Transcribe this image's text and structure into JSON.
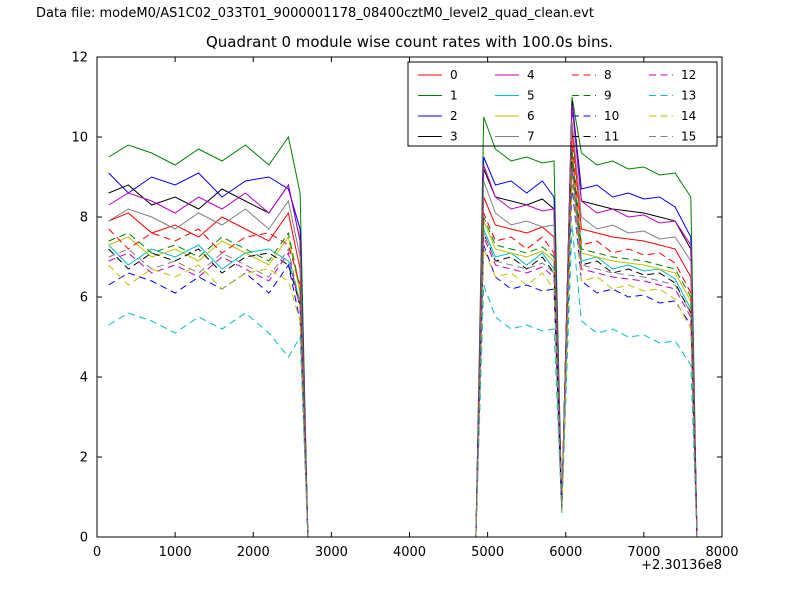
{
  "header": {
    "data_file_label": "Data file: modeM0/AS1C02_033T01_9000001178_08400cztM0_level2_quad_clean.evt"
  },
  "chart_data": {
    "type": "line",
    "title": "Quadrant 0 module wise count rates with 100.0s bins.",
    "xlabel": "",
    "ylabel": "",
    "xlim": [
      0,
      8000
    ],
    "ylim": [
      0,
      12
    ],
    "xticks": [
      0,
      1000,
      2000,
      3000,
      4000,
      5000,
      6000,
      7000,
      8000
    ],
    "yticks": [
      0,
      2,
      4,
      6,
      8,
      10,
      12
    ],
    "x_offset_label": "+2.30136e8",
    "grid": false,
    "legend": {
      "ncol": 4,
      "loc": "upper right"
    },
    "x": [
      150,
      400,
      700,
      1000,
      1300,
      1600,
      1900,
      2200,
      2450,
      2600,
      2700,
      3200,
      4000,
      4700,
      4850,
      4950,
      5100,
      5300,
      5500,
      5700,
      5850,
      5950,
      6080,
      6200,
      6400,
      6600,
      6800,
      7000,
      7200,
      7400,
      7600,
      7680
    ],
    "series": [
      {
        "name": "0",
        "color": "#ff0000",
        "dash": "solid",
        "values": [
          7.9,
          8.1,
          7.6,
          7.8,
          7.5,
          8.0,
          7.7,
          7.4,
          8.1,
          6.7,
          0,
          0,
          0,
          0,
          0,
          8.5,
          7.8,
          7.7,
          7.6,
          7.75,
          7.5,
          0.7,
          10.2,
          7.7,
          7.6,
          7.5,
          7.45,
          7.4,
          7.3,
          7.2,
          6.5,
          0
        ]
      },
      {
        "name": "1",
        "color": "#008000",
        "dash": "solid",
        "values": [
          9.5,
          9.8,
          9.6,
          9.3,
          9.7,
          9.4,
          9.8,
          9.3,
          10.0,
          8.6,
          0,
          0,
          0,
          0,
          0,
          10.5,
          9.7,
          9.4,
          9.5,
          9.35,
          9.4,
          0.8,
          11.0,
          9.6,
          9.3,
          9.4,
          9.2,
          9.25,
          9.05,
          9.1,
          8.5,
          0
        ]
      },
      {
        "name": "2",
        "color": "#0000ff",
        "dash": "solid",
        "values": [
          9.1,
          8.6,
          9.0,
          8.8,
          9.1,
          8.5,
          8.9,
          9.0,
          8.7,
          7.7,
          0,
          0,
          0,
          0,
          0,
          9.5,
          8.8,
          8.9,
          8.6,
          8.9,
          8.5,
          0.75,
          10.9,
          8.7,
          8.8,
          8.5,
          8.6,
          8.45,
          8.5,
          8.25,
          7.5,
          0
        ]
      },
      {
        "name": "3",
        "color": "#000000",
        "dash": "solid",
        "values": [
          8.6,
          8.8,
          8.3,
          8.5,
          8.2,
          8.7,
          8.4,
          8.1,
          8.8,
          7.4,
          0,
          0,
          0,
          0,
          0,
          9.2,
          8.5,
          8.4,
          8.3,
          8.45,
          8.2,
          0.7,
          10.9,
          8.4,
          8.3,
          8.2,
          8.15,
          8.1,
          8.0,
          7.9,
          7.2,
          0
        ]
      },
      {
        "name": "4",
        "color": "#bf00bf",
        "dash": "solid",
        "values": [
          8.3,
          8.6,
          8.4,
          8.1,
          8.5,
          8.2,
          8.6,
          8.1,
          8.8,
          7.4,
          0,
          0,
          0,
          0,
          0,
          9.3,
          8.5,
          8.2,
          8.3,
          8.15,
          8.2,
          0.8,
          10.8,
          8.4,
          8.1,
          8.2,
          8.0,
          8.05,
          7.85,
          7.9,
          7.3,
          0
        ]
      },
      {
        "name": "5",
        "color": "#00bfbf",
        "dash": "solid",
        "values": [
          7.3,
          6.8,
          7.2,
          7.0,
          7.3,
          6.7,
          7.1,
          7.2,
          6.9,
          5.9,
          0,
          0,
          0,
          0,
          0,
          7.7,
          7.0,
          7.1,
          6.8,
          7.1,
          6.7,
          0.65,
          9.5,
          6.9,
          7.0,
          6.7,
          6.8,
          6.65,
          6.7,
          6.45,
          5.7,
          0
        ]
      },
      {
        "name": "6",
        "color": "#bfbf00",
        "dash": "solid",
        "values": [
          7.3,
          7.5,
          7.0,
          7.2,
          6.9,
          7.4,
          7.1,
          6.8,
          7.5,
          6.1,
          0,
          0,
          0,
          0,
          0,
          7.9,
          7.2,
          7.1,
          7.0,
          7.15,
          6.9,
          0.7,
          9.6,
          7.1,
          7.0,
          6.9,
          6.85,
          6.8,
          6.7,
          6.6,
          5.9,
          0
        ]
      },
      {
        "name": "7",
        "color": "#808080",
        "dash": "solid",
        "values": [
          7.9,
          8.2,
          8.0,
          7.7,
          8.1,
          7.8,
          8.2,
          7.7,
          8.4,
          7.0,
          0,
          0,
          0,
          0,
          0,
          8.9,
          8.1,
          7.8,
          7.9,
          7.75,
          7.8,
          0.75,
          10.4,
          8.0,
          7.7,
          7.8,
          7.6,
          7.65,
          7.45,
          7.5,
          6.9,
          0
        ]
      },
      {
        "name": "8",
        "color": "#ff0000",
        "dash": "dashed",
        "values": [
          7.7,
          7.2,
          7.6,
          7.4,
          7.7,
          7.1,
          7.5,
          7.6,
          7.3,
          6.3,
          0,
          0,
          0,
          0,
          0,
          8.1,
          7.4,
          7.5,
          7.2,
          7.5,
          7.1,
          0.7,
          9.9,
          7.3,
          7.4,
          7.1,
          7.2,
          7.05,
          7.1,
          6.85,
          6.1,
          0
        ]
      },
      {
        "name": "9",
        "color": "#008000",
        "dash": "dashed",
        "values": [
          7.4,
          7.6,
          7.1,
          7.3,
          7.0,
          7.5,
          7.2,
          6.9,
          7.6,
          6.2,
          0,
          0,
          0,
          0,
          0,
          8.0,
          7.3,
          7.2,
          7.1,
          7.25,
          7.0,
          0.7,
          9.7,
          7.2,
          7.1,
          7.0,
          6.95,
          6.9,
          6.8,
          6.7,
          6.0,
          0
        ]
      },
      {
        "name": "10",
        "color": "#0000ff",
        "dash": "dashed",
        "values": [
          6.3,
          6.6,
          6.4,
          6.1,
          6.5,
          6.2,
          6.6,
          6.1,
          6.8,
          5.4,
          0,
          0,
          0,
          0,
          0,
          7.3,
          6.5,
          6.2,
          6.3,
          6.15,
          6.2,
          0.65,
          8.8,
          6.4,
          6.1,
          6.2,
          6.0,
          6.05,
          5.85,
          5.9,
          5.3,
          0
        ]
      },
      {
        "name": "11",
        "color": "#000000",
        "dash": "dashed",
        "values": [
          7.2,
          6.7,
          7.1,
          6.9,
          7.2,
          6.6,
          7.0,
          7.1,
          6.8,
          5.8,
          0,
          0,
          0,
          0,
          0,
          7.6,
          6.9,
          7.0,
          6.7,
          7.0,
          6.6,
          0.7,
          9.4,
          6.8,
          6.9,
          6.6,
          6.7,
          6.55,
          6.6,
          6.35,
          5.6,
          0
        ]
      },
      {
        "name": "12",
        "color": "#bf00bf",
        "dash": "dashed",
        "values": [
          6.9,
          7.1,
          6.6,
          6.8,
          6.5,
          7.0,
          6.7,
          6.4,
          7.1,
          5.7,
          0,
          0,
          0,
          0,
          0,
          7.5,
          6.8,
          6.7,
          6.6,
          6.75,
          6.5,
          0.7,
          9.2,
          6.7,
          6.6,
          6.5,
          6.45,
          6.4,
          6.3,
          6.2,
          5.5,
          0
        ]
      },
      {
        "name": "13",
        "color": "#00bfbf",
        "dash": "dashed",
        "values": [
          5.3,
          5.6,
          5.4,
          5.1,
          5.5,
          5.2,
          5.6,
          5.1,
          4.5,
          5.0,
          0,
          0,
          0,
          0,
          0,
          6.3,
          5.5,
          5.2,
          5.3,
          5.15,
          5.2,
          0.6,
          7.8,
          5.4,
          5.1,
          5.2,
          5.0,
          5.05,
          4.85,
          4.9,
          4.3,
          0
        ]
      },
      {
        "name": "14",
        "color": "#bfbf00",
        "dash": "dashed",
        "values": [
          6.8,
          6.3,
          6.7,
          6.5,
          6.8,
          6.2,
          6.6,
          6.7,
          6.4,
          5.4,
          0,
          0,
          0,
          0,
          0,
          7.2,
          6.5,
          6.6,
          6.3,
          6.6,
          6.2,
          0.65,
          9.0,
          6.4,
          6.5,
          6.2,
          6.3,
          6.15,
          6.2,
          5.95,
          5.2,
          0
        ]
      },
      {
        "name": "15",
        "color": "#808080",
        "dash": "dashed",
        "values": [
          7.0,
          7.2,
          6.7,
          6.9,
          6.6,
          7.1,
          6.8,
          6.5,
          7.2,
          5.8,
          0,
          0,
          0,
          0,
          0,
          7.6,
          6.9,
          6.8,
          6.7,
          6.85,
          6.6,
          0.7,
          9.3,
          6.8,
          6.7,
          6.6,
          6.55,
          6.5,
          6.4,
          6.3,
          5.6,
          0
        ]
      }
    ]
  }
}
